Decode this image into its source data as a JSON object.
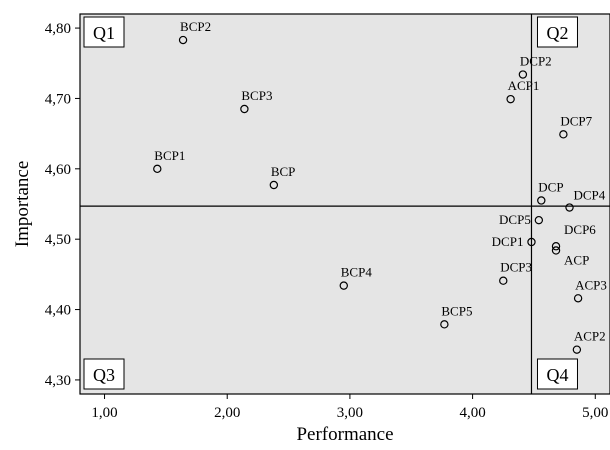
{
  "chart_data": {
    "type": "scatter",
    "title": "",
    "xlabel": "Performance",
    "ylabel": "Importance",
    "xlim": [
      0.8,
      5.12
    ],
    "ylim": [
      4.28,
      4.82
    ],
    "xticks": [
      "1,00",
      "2,00",
      "3,00",
      "4,00",
      "5,00"
    ],
    "yticks": [
      "4,30",
      "4,40",
      "4,50",
      "4,60",
      "4,70",
      "4,80"
    ],
    "grid": false,
    "background": "#e5e5e5",
    "reference_lines": {
      "x": 4.48,
      "y": 4.547
    },
    "quadrants": [
      "Q1",
      "Q2",
      "Q3",
      "Q4"
    ],
    "points": [
      {
        "label": "BCP2",
        "x": 1.64,
        "y": 4.783
      },
      {
        "label": "BCP3",
        "x": 2.14,
        "y": 4.685
      },
      {
        "label": "BCP1",
        "x": 1.43,
        "y": 4.6
      },
      {
        "label": "BCP",
        "x": 2.38,
        "y": 4.577
      },
      {
        "label": "BCP4",
        "x": 2.95,
        "y": 4.434
      },
      {
        "label": "BCP5",
        "x": 3.77,
        "y": 4.379
      },
      {
        "label": "DCP2",
        "x": 4.41,
        "y": 4.734
      },
      {
        "label": "ACP1",
        "x": 4.31,
        "y": 4.699
      },
      {
        "label": "DCP7",
        "x": 4.74,
        "y": 4.649
      },
      {
        "label": "DCP",
        "x": 4.56,
        "y": 4.555
      },
      {
        "label": "DCP4",
        "x": 4.79,
        "y": 4.545
      },
      {
        "label": "DCP5",
        "x": 4.54,
        "y": 4.527
      },
      {
        "label": "DCP1",
        "x": 4.48,
        "y": 4.496
      },
      {
        "label": "DCP6",
        "x": 4.68,
        "y": 4.49
      },
      {
        "label": "ACP",
        "x": 4.68,
        "y": 4.484
      },
      {
        "label": "DCP3",
        "x": 4.25,
        "y": 4.441
      },
      {
        "label": "ACP3",
        "x": 4.86,
        "y": 4.416
      },
      {
        "label": "ACP2",
        "x": 4.85,
        "y": 4.343
      }
    ]
  }
}
